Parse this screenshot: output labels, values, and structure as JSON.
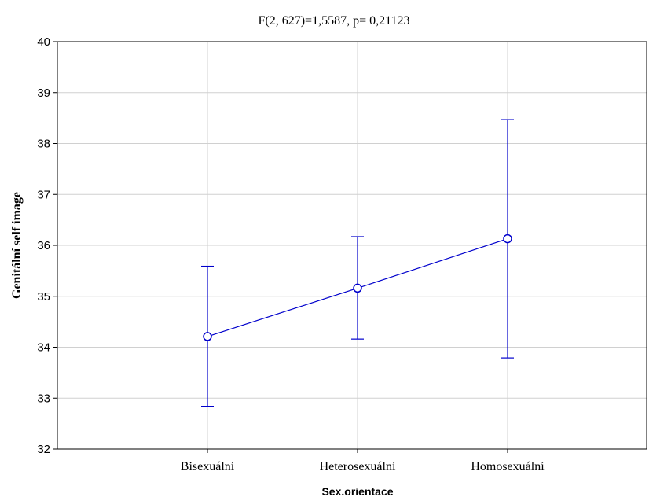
{
  "chart_data": {
    "type": "line",
    "title": "F(2, 627)=1,5587, p= 0,21123",
    "xlabel": "Sex.orientace",
    "ylabel": "Genitální self image",
    "categories": [
      "Bisexuální",
      "Heterosexuální",
      "Homosexuální"
    ],
    "ylim": [
      32,
      40
    ],
    "yticks": [
      "32",
      "33",
      "34",
      "35",
      "36",
      "37",
      "38",
      "39",
      "40"
    ],
    "grid": true,
    "series": [
      {
        "values": [
          34.21,
          35.16,
          36.13
        ],
        "lower": [
          32.84,
          34.16,
          33.79
        ],
        "upper": [
          35.59,
          36.17,
          38.47
        ]
      }
    ],
    "colors": {
      "series": "#0000cc",
      "grid": "#d0d0d0",
      "axis": "#000000"
    }
  }
}
